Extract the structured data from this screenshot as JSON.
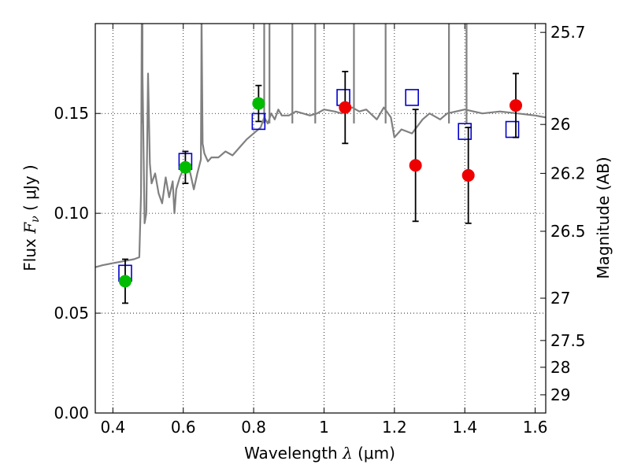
{
  "chart_data": {
    "type": "scatter",
    "title": "",
    "xlabel": {
      "prefix": "Wavelength  ",
      "symbol": "λ",
      "unit": " (μm)"
    },
    "ylabel": {
      "prefix": "Flux  ",
      "symbol": "F",
      "subscript": "ν",
      "unit": "  ( μJy )"
    },
    "y2label": "Magnitude (AB)",
    "xlim": [
      0.35,
      1.63
    ],
    "ylim": [
      0.0,
      0.195
    ],
    "grid": true,
    "x_ticks": [
      {
        "value": 0.4,
        "label": "0.4"
      },
      {
        "value": 0.6,
        "label": "0.6"
      },
      {
        "value": 0.8,
        "label": "0.8"
      },
      {
        "value": 1.0,
        "label": "1"
      },
      {
        "value": 1.2,
        "label": "1.2"
      },
      {
        "value": 1.4,
        "label": "1.4"
      },
      {
        "value": 1.6,
        "label": "1.6"
      }
    ],
    "y_ticks": [
      {
        "value": 0.0,
        "label": "0.00"
      },
      {
        "value": 0.05,
        "label": "0.05"
      },
      {
        "value": 0.1,
        "label": "0.10"
      },
      {
        "value": 0.15,
        "label": "0.15"
      }
    ],
    "y2_ticks": [
      {
        "flux": 0.1906,
        "label": "25.7"
      },
      {
        "flux": 0.1445,
        "label": "26"
      },
      {
        "flux": 0.12,
        "label": "26.2"
      },
      {
        "flux": 0.091,
        "label": "26.5"
      },
      {
        "flux": 0.0575,
        "label": "27"
      },
      {
        "flux": 0.0363,
        "label": "27.5"
      },
      {
        "flux": 0.0229,
        "label": "28"
      },
      {
        "flux": 0.0091,
        "label": "29"
      }
    ],
    "series": [
      {
        "name": "model_spectrum",
        "kind": "line",
        "color": "#808080",
        "x": [
          0.35,
          0.37,
          0.4,
          0.43,
          0.46,
          0.475,
          0.48,
          0.482,
          0.485,
          0.49,
          0.495,
          0.5,
          0.505,
          0.51,
          0.52,
          0.53,
          0.54,
          0.55,
          0.56,
          0.57,
          0.575,
          0.58,
          0.59,
          0.6,
          0.61,
          0.62,
          0.63,
          0.64,
          0.65,
          0.652,
          0.655,
          0.66,
          0.67,
          0.68,
          0.7,
          0.72,
          0.74,
          0.76,
          0.78,
          0.8,
          0.82,
          0.83,
          0.84,
          0.85,
          0.86,
          0.87,
          0.88,
          0.9,
          0.92,
          0.94,
          0.96,
          0.98,
          1.0,
          1.03,
          1.05,
          1.08,
          1.1,
          1.12,
          1.15,
          1.17,
          1.19,
          1.2,
          1.22,
          1.25,
          1.28,
          1.3,
          1.33,
          1.35,
          1.4,
          1.45,
          1.5,
          1.55,
          1.6,
          1.63
        ],
        "y": [
          0.073,
          0.074,
          0.075,
          0.076,
          0.077,
          0.078,
          0.11,
          0.195,
          0.16,
          0.095,
          0.1,
          0.17,
          0.125,
          0.115,
          0.12,
          0.11,
          0.105,
          0.118,
          0.108,
          0.116,
          0.1,
          0.112,
          0.118,
          0.122,
          0.125,
          0.12,
          0.112,
          0.12,
          0.127,
          0.195,
          0.135,
          0.13,
          0.126,
          0.128,
          0.128,
          0.131,
          0.129,
          0.133,
          0.137,
          0.14,
          0.143,
          0.148,
          0.145,
          0.15,
          0.147,
          0.152,
          0.149,
          0.149,
          0.151,
          0.15,
          0.149,
          0.15,
          0.152,
          0.151,
          0.15,
          0.153,
          0.151,
          0.152,
          0.147,
          0.153,
          0.148,
          0.138,
          0.142,
          0.14,
          0.147,
          0.15,
          0.147,
          0.15,
          0.152,
          0.15,
          0.151,
          0.15,
          0.149,
          0.148
        ]
      },
      {
        "name": "model_spikes",
        "kind": "spikes",
        "color": "#808080",
        "x": [
          0.484,
          0.652,
          0.83,
          0.845,
          0.91,
          0.975,
          1.085,
          1.175,
          1.355,
          1.405
        ],
        "top": [
          0.195,
          0.195,
          0.195,
          0.195,
          0.195,
          0.195,
          0.195,
          0.195,
          0.195,
          0.195
        ]
      },
      {
        "name": "model_magnitudes",
        "kind": "open-square",
        "color": "#0000cc",
        "x": [
          0.435,
          0.606,
          0.814,
          1.055,
          1.25,
          1.4,
          1.535
        ],
        "y": [
          0.07,
          0.126,
          0.146,
          0.158,
          0.158,
          0.141,
          0.142
        ]
      },
      {
        "name": "observed_optical",
        "kind": "filled-circle",
        "color": "#00bb00",
        "x": [
          0.435,
          0.606,
          0.814
        ],
        "y": [
          0.066,
          0.123,
          0.155
        ],
        "yerr": [
          0.011,
          0.008,
          0.009
        ]
      },
      {
        "name": "observed_nir",
        "kind": "filled-circle",
        "color": "#ee0000",
        "x": [
          1.06,
          1.26,
          1.41,
          1.545
        ],
        "y": [
          0.153,
          0.124,
          0.119,
          0.154
        ],
        "yerr": [
          0.018,
          0.028,
          0.024,
          0.016
        ]
      }
    ]
  }
}
